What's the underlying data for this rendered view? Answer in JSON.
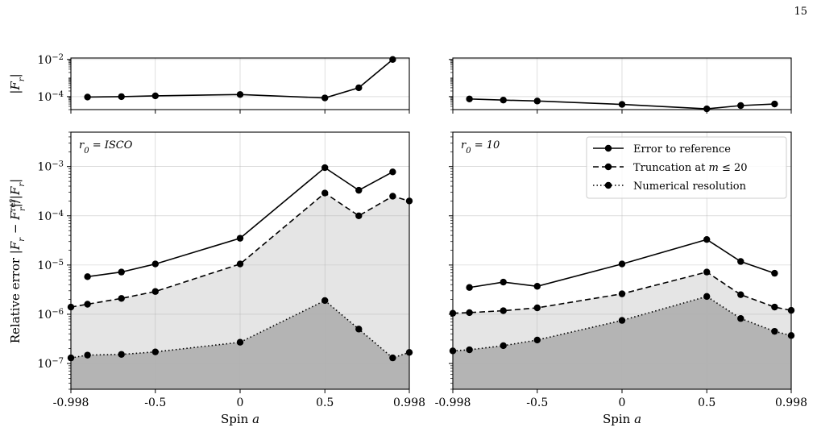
{
  "page_number": "15",
  "chart_data": [
    {
      "type": "line",
      "panel": "top-left",
      "ylabel": "|F_r|",
      "yscale": "log",
      "ylim": [
        2e-05,
        0.012
      ],
      "xlim": [
        -0.998,
        0.998
      ],
      "x_ticks": [
        "-0.998",
        "-0.5",
        "0",
        "0.5",
        "0.998"
      ],
      "y_ticks": [
        {
          "label": "10",
          "exp": "−2",
          "value": 0.01
        },
        {
          "label": "10",
          "exp": "−4",
          "value": 0.0001
        }
      ],
      "series": [
        {
          "style": "solid",
          "x": [
            -0.9,
            -0.7,
            -0.5,
            0.0,
            0.5,
            0.7,
            0.9
          ],
          "y": [
            9.5e-05,
            0.0001,
            0.00011,
            0.00013,
            8.5e-05,
            0.0003,
            0.01
          ]
        }
      ]
    },
    {
      "type": "line",
      "panel": "top-right",
      "yscale": "log",
      "ylim": [
        2e-05,
        0.012
      ],
      "xlim": [
        -0.998,
        0.998
      ],
      "series": [
        {
          "style": "solid",
          "x": [
            -0.9,
            -0.7,
            -0.5,
            0.0,
            0.5,
            0.7,
            0.9
          ],
          "y": [
            7.5e-05,
            6.5e-05,
            5.8e-05,
            3.8e-05,
            2.2e-05,
            3.3e-05,
            4e-05
          ]
        }
      ]
    },
    {
      "type": "line",
      "panel": "bottom-left",
      "annotation": "r_0 = ISCO",
      "ylabel": "Relative error |F_r − F_r^ref|/|F_r|",
      "xlabel": "Spin a",
      "yscale": "log",
      "ylim": [
        3e-08,
        0.005
      ],
      "xlim": [
        -0.998,
        0.998
      ],
      "x_ticks": [
        "-0.998",
        "-0.5",
        "0",
        "0.5",
        "0.998"
      ],
      "y_ticks": [
        {
          "label": "10",
          "exp": "−3",
          "value": 0.001
        },
        {
          "label": "10",
          "exp": "−4",
          "value": 0.0001
        },
        {
          "label": "10",
          "exp": "−5",
          "value": 1e-05
        },
        {
          "label": "10",
          "exp": "−6",
          "value": 1e-06
        },
        {
          "label": "10",
          "exp": "−7",
          "value": 1e-07
        }
      ],
      "series": [
        {
          "style": "solid",
          "x": [
            -0.9,
            -0.7,
            -0.5,
            0.0,
            0.5,
            0.7,
            0.9
          ],
          "y": [
            5.8e-06,
            7.2e-06,
            1.05e-05,
            3.5e-05,
            0.00095,
            0.00033,
            0.00078
          ]
        },
        {
          "style": "dashed",
          "x": [
            -0.998,
            -0.9,
            -0.7,
            -0.5,
            0.0,
            0.5,
            0.7,
            0.9,
            0.998
          ],
          "y": [
            1.4e-06,
            1.6e-06,
            2.1e-06,
            2.9e-06,
            1.05e-05,
            0.00029,
            0.0001,
            0.00025,
            0.0002
          ]
        },
        {
          "style": "dotted",
          "x": [
            -0.998,
            -0.9,
            -0.7,
            -0.5,
            0.0,
            0.5,
            0.7,
            0.9,
            0.998
          ],
          "y": [
            1.3e-07,
            1.48e-07,
            1.53e-07,
            1.72e-07,
            2.7e-07,
            1.9e-06,
            5e-07,
            1.3e-07,
            1.68e-07
          ]
        }
      ]
    },
    {
      "type": "line",
      "panel": "bottom-right",
      "annotation": "r_0 = 10",
      "xlabel": "Spin a",
      "yscale": "log",
      "ylim": [
        3e-08,
        0.005
      ],
      "xlim": [
        -0.998,
        0.998
      ],
      "x_ticks": [
        "-0.998",
        "-0.5",
        "0",
        "0.5",
        "0.998"
      ],
      "legend_position": "top-right",
      "legend": [
        "Error to reference",
        "Truncation at m ≤ 20",
        "Numerical resolution"
      ],
      "series": [
        {
          "style": "solid",
          "x": [
            -0.9,
            -0.7,
            -0.5,
            0.0,
            0.5,
            0.7,
            0.9
          ],
          "y": [
            3.5e-06,
            4.5e-06,
            3.7e-06,
            1.05e-05,
            3.3e-05,
            1.18e-05,
            6.8e-06
          ]
        },
        {
          "style": "dashed",
          "x": [
            -0.998,
            -0.9,
            -0.7,
            -0.5,
            0.0,
            0.5,
            0.7,
            0.9,
            0.998
          ],
          "y": [
            1.05e-06,
            1.08e-06,
            1.18e-06,
            1.35e-06,
            2.6e-06,
            7.2e-06,
            2.5e-06,
            1.4e-06,
            1.2e-06
          ]
        },
        {
          "style": "dotted",
          "x": [
            -0.998,
            -0.9,
            -0.7,
            -0.5,
            0.0,
            0.5,
            0.7,
            0.9,
            0.998
          ],
          "y": [
            1.8e-07,
            1.9e-07,
            2.3e-07,
            3e-07,
            7.5e-07,
            2.3e-06,
            8.2e-07,
            4.5e-07,
            3.7e-07
          ]
        }
      ]
    }
  ]
}
